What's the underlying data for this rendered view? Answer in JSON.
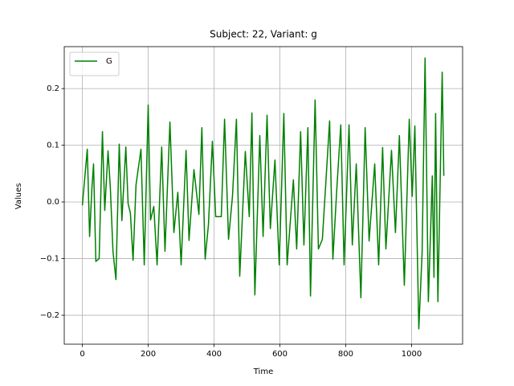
{
  "chart_data": {
    "type": "line",
    "title": "Subject: 22, Variant: g",
    "x_label": "Time",
    "y_label": "Values",
    "x": [
      0,
      10,
      15,
      22,
      29,
      34,
      41,
      51,
      61,
      68,
      78,
      85,
      93,
      102,
      112,
      120,
      132,
      139,
      146,
      154,
      163,
      178,
      188,
      200,
      207,
      217,
      227,
      241,
      251,
      266,
      278,
      290,
      300,
      315,
      324,
      339,
      354,
      363,
      373,
      383,
      395,
      405,
      422,
      432,
      444,
      456,
      468,
      478,
      495,
      507,
      515,
      524,
      539,
      549,
      561,
      571,
      585,
      598,
      612,
      622,
      641,
      651,
      663,
      673,
      685,
      693,
      707,
      717,
      729,
      751,
      761,
      773,
      785,
      795,
      810,
      820,
      832,
      846,
      859,
      871,
      888,
      900,
      912,
      922,
      939,
      951,
      963,
      978,
      993,
      1002,
      1010,
      1022,
      1032,
      1041,
      1051,
      1063,
      1068,
      1073,
      1080,
      1093,
      1098
    ],
    "series": [
      {
        "name": "G",
        "color": "#008000",
        "values": [
          -0.006,
          0.06,
          0.093,
          -0.061,
          0.024,
          0.067,
          -0.105,
          -0.1,
          0.124,
          -0.015,
          0.09,
          0.025,
          -0.087,
          -0.137,
          0.102,
          -0.033,
          0.097,
          -0.003,
          -0.02,
          -0.103,
          0.03,
          0.093,
          -0.111,
          0.171,
          -0.032,
          -0.008,
          -0.111,
          0.097,
          -0.087,
          0.141,
          -0.054,
          0.017,
          -0.111,
          0.091,
          -0.068,
          0.057,
          -0.022,
          0.131,
          -0.101,
          -0.04,
          0.107,
          -0.026,
          -0.026,
          0.146,
          -0.066,
          0.01,
          0.146,
          -0.131,
          0.089,
          -0.026,
          0.157,
          -0.164,
          0.117,
          -0.061,
          0.153,
          -0.047,
          0.074,
          -0.111,
          0.156,
          -0.111,
          0.039,
          -0.083,
          0.124,
          -0.076,
          0.131,
          -0.166,
          0.18,
          -0.083,
          -0.066,
          0.143,
          -0.101,
          0.024,
          0.136,
          -0.111,
          0.136,
          -0.076,
          0.067,
          -0.169,
          0.131,
          -0.069,
          0.067,
          -0.111,
          0.096,
          -0.083,
          0.091,
          -0.054,
          0.117,
          -0.147,
          0.146,
          0.01,
          0.134,
          -0.224,
          -0.09,
          0.254,
          -0.176,
          0.046,
          -0.133,
          0.156,
          -0.176,
          0.229,
          0.046
        ]
      }
    ],
    "xlim": [
      -55,
      1155
    ],
    "ylim": [
      -0.251,
      0.274
    ],
    "xticks": [
      0,
      200,
      400,
      600,
      800,
      1000
    ],
    "yticks": [
      {
        "value": -0.2,
        "label": "−0.2"
      },
      {
        "value": -0.1,
        "label": "−0.1"
      },
      {
        "value": 0,
        "label": "0.0"
      },
      {
        "value": 0.1,
        "label": "0.1"
      },
      {
        "value": 0.2,
        "label": "0.2"
      }
    ],
    "grid": true,
    "legend": "upper-left"
  }
}
